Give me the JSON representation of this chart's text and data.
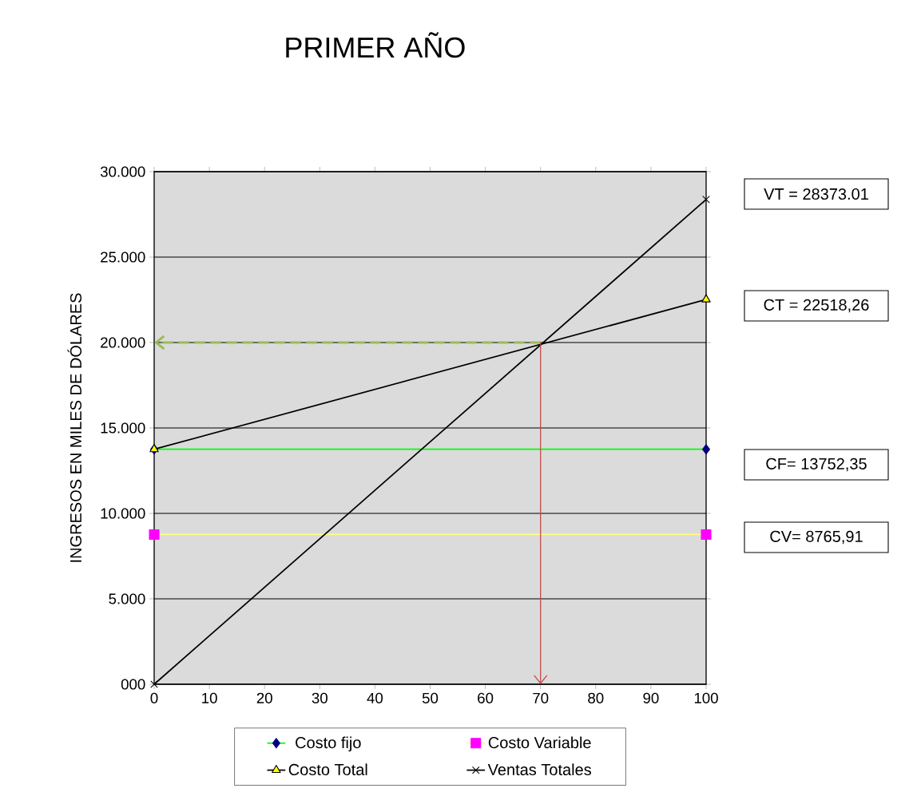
{
  "chart_data": {
    "type": "line",
    "title": "PRIMER AÑO",
    "ylabel": "INGRESOS EN MILES DE DÓLARES",
    "x": [
      0,
      100
    ],
    "xlim": [
      0,
      100
    ],
    "xticks": [
      0,
      10,
      20,
      30,
      40,
      50,
      60,
      70,
      80,
      90,
      100
    ],
    "ylim": [
      0,
      30000
    ],
    "yticks": [
      {
        "value": 0,
        "label": "000"
      },
      {
        "value": 5000,
        "label": "5.000"
      },
      {
        "value": 10000,
        "label": "10.000"
      },
      {
        "value": 15000,
        "label": "15.000"
      },
      {
        "value": 20000,
        "label": "20.000"
      },
      {
        "value": 25000,
        "label": "25.000"
      },
      {
        "value": 30000,
        "label": "30.000"
      }
    ],
    "grid": "y",
    "legend": "bottom",
    "series": [
      {
        "name": "Costo fijo",
        "color": "#00ff00",
        "colors": [
          "#000080",
          "#000080"
        ],
        "marker": "diamond",
        "values": [
          13752.35,
          13752.35
        ]
      },
      {
        "name": "Costo Variable",
        "color": "#ffff80",
        "colors": [
          "#ff00ff",
          "#ff00ff"
        ],
        "marker": "square",
        "values": [
          8765.91,
          8765.91
        ]
      },
      {
        "name": "Costo Total",
        "color": "#000000",
        "colors": [
          "#ffff00",
          "#ffff00"
        ],
        "marker": "triangle",
        "values": [
          13752.35,
          22518.26
        ]
      },
      {
        "name": "Ventas Totales",
        "color": "#000000",
        "colors": [
          "#000000",
          "#000000"
        ],
        "marker": "cross",
        "values": [
          0,
          28373.01
        ]
      }
    ],
    "ref_lines": [
      {
        "axis": "y",
        "value": 20000,
        "color": "#9bbb59",
        "line_style": "dashed"
      },
      {
        "axis": "x",
        "value": 70,
        "color": "#c0504d",
        "line_style": "solid"
      }
    ],
    "annotations": [
      "VT = 28373.01",
      "CT = 22518,26",
      "CF= 13752,35",
      "CV= 8765,91"
    ]
  }
}
